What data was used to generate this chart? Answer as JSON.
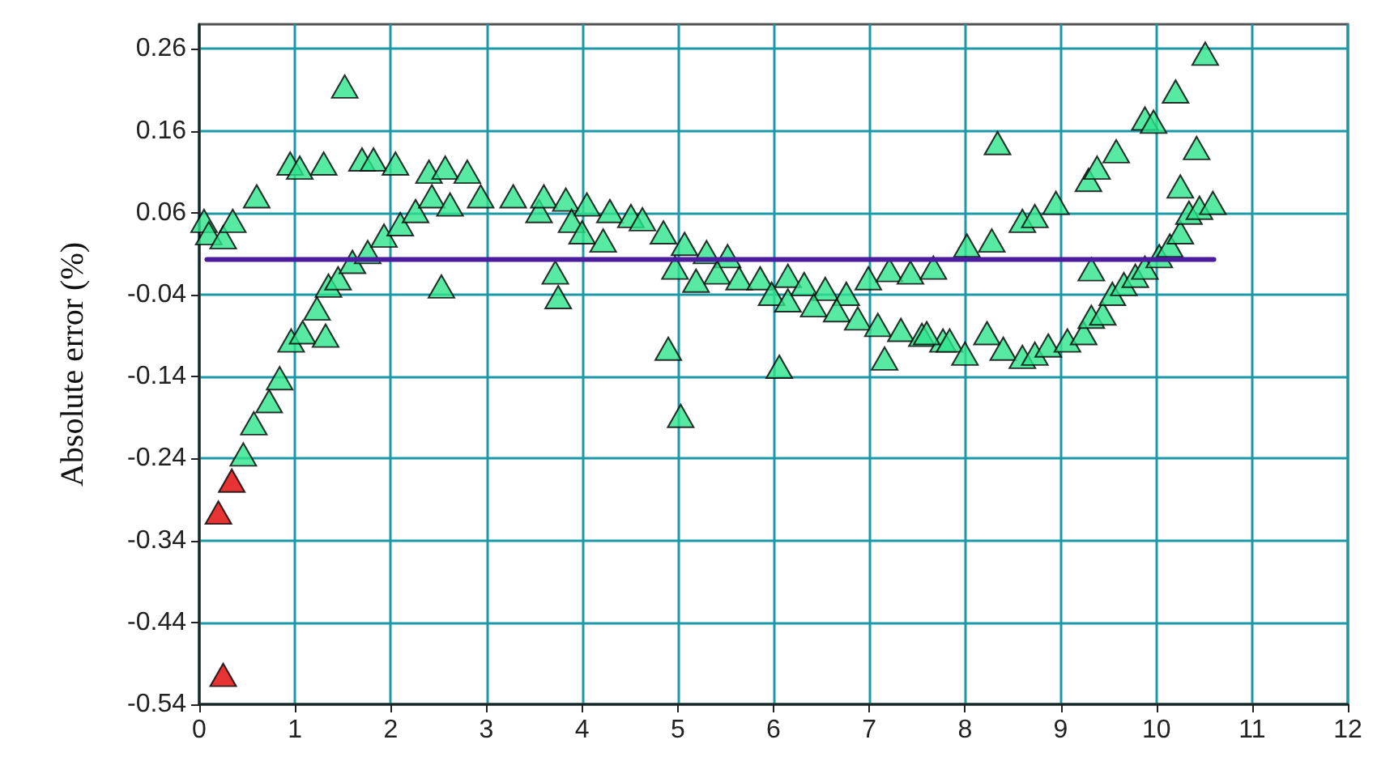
{
  "chart_data": {
    "type": "scatter",
    "ylabel": "Absolute error (%)",
    "xlim": [
      0,
      12
    ],
    "xticks": [
      0,
      1,
      2,
      3,
      4,
      5,
      6,
      7,
      8,
      9,
      10,
      11,
      12
    ],
    "ylim": [
      -0.54,
      0.29
    ],
    "yticks": [
      -0.54,
      -0.44,
      -0.34,
      -0.24,
      -0.14,
      -0.04,
      0.06,
      0.16,
      0.26
    ],
    "grid": true,
    "marker": "triangle",
    "series": [
      {
        "color": "#2ee38c",
        "x": [
          0.05,
          0.1,
          0.25,
          0.35,
          0.6,
          0.95,
          1.05,
          1.3,
          1.52,
          1.7,
          1.82,
          2.05,
          2.4,
          2.57,
          2.8,
          2.53,
          0.46,
          0.57,
          0.73,
          0.84,
          0.96,
          1.08,
          1.32,
          1.23,
          1.35,
          1.45,
          1.6,
          1.76,
          1.93,
          2.1,
          2.26,
          2.43,
          2.62,
          2.94,
          3.28,
          3.55,
          3.72,
          3.75,
          3.6,
          3.83,
          4.05,
          4.29,
          4.51,
          4.63,
          4.85,
          5.07,
          5.3,
          5.52,
          3.89,
          4.0,
          4.22,
          4.97,
          5.41,
          5.64,
          5.86,
          6.15,
          6.32,
          6.54,
          6.76,
          6.99,
          7.21,
          7.43,
          7.67,
          5.19,
          5.98,
          6.15,
          6.42,
          6.66,
          6.88,
          7.09,
          7.33,
          7.55,
          7.77,
          4.9,
          5.03,
          6.06,
          7.16,
          7.6,
          7.84,
          8.0,
          8.23,
          8.4,
          8.6,
          8.73,
          8.87,
          9.07,
          9.24,
          9.32,
          9.44,
          9.54,
          9.66,
          9.78,
          9.88,
          10.03,
          10.14,
          10.25,
          10.34,
          10.45,
          10.59,
          8.02,
          8.28,
          8.6,
          8.73,
          8.95,
          9.29,
          9.38,
          9.58,
          9.88,
          9.97,
          10.2,
          10.51,
          10.42,
          10.25,
          8.34,
          9.32
        ],
        "values": [
          0.05,
          0.035,
          0.03,
          0.05,
          0.08,
          0.12,
          0.115,
          0.12,
          0.214,
          0.125,
          0.125,
          0.12,
          0.11,
          0.115,
          0.11,
          -0.03,
          -0.235,
          -0.197,
          -0.17,
          -0.142,
          -0.096,
          -0.086,
          -0.09,
          -0.057,
          -0.029,
          -0.02,
          0.0,
          0.012,
          0.032,
          0.046,
          0.062,
          0.08,
          0.07,
          0.08,
          0.08,
          0.062,
          -0.013,
          -0.043,
          0.08,
          0.076,
          0.07,
          0.062,
          0.056,
          0.052,
          0.036,
          0.022,
          0.012,
          0.007,
          0.05,
          0.036,
          0.026,
          -0.007,
          -0.013,
          -0.02,
          -0.02,
          -0.017,
          -0.027,
          -0.033,
          -0.039,
          -0.02,
          -0.01,
          -0.013,
          -0.007,
          -0.023,
          -0.039,
          -0.047,
          -0.053,
          -0.059,
          -0.069,
          -0.077,
          -0.083,
          -0.089,
          -0.096,
          -0.106,
          -0.188,
          -0.128,
          -0.118,
          -0.087,
          -0.096,
          -0.112,
          -0.087,
          -0.106,
          -0.116,
          -0.112,
          -0.102,
          -0.096,
          -0.087,
          -0.067,
          -0.063,
          -0.039,
          -0.027,
          -0.017,
          -0.007,
          0.007,
          0.02,
          0.036,
          0.06,
          0.066,
          0.072,
          0.02,
          0.026,
          0.05,
          0.056,
          0.072,
          0.1,
          0.115,
          0.135,
          0.175,
          0.171,
          0.208,
          0.254,
          0.139,
          0.092,
          0.145,
          -0.009
        ]
      },
      {
        "color": "#e00000",
        "x": [
          0.34,
          0.2,
          0.25
        ],
        "values": [
          -0.267,
          -0.306,
          -0.504
        ]
      },
      {
        "type": "line",
        "color": "#4b1c9e",
        "marker": "none",
        "line_style": "solid",
        "x": [
          0.08,
          10.6
        ],
        "values": [
          0.003,
          0.003
        ]
      }
    ]
  }
}
